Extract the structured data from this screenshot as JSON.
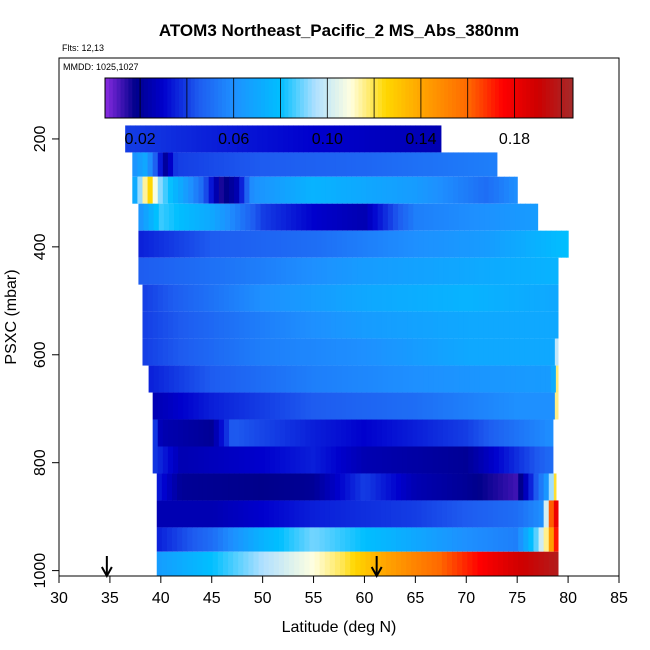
{
  "chart_data": {
    "type": "heatmap",
    "title": "ATOM3 Northeast_Pacific_2 MS_Abs_380nm",
    "flights_label": "Flts: 12,13",
    "dates_label": "MMDD: 1025,1027",
    "xlabel": "Latitude (deg N)",
    "ylabel": "PSXC (mbar)",
    "xlim": [
      30,
      85
    ],
    "ylim": [
      1010,
      50
    ],
    "y_reversed": true,
    "x_ticks": [
      "30",
      "35",
      "40",
      "45",
      "50",
      "55",
      "60",
      "65",
      "70",
      "75",
      "80",
      "85"
    ],
    "y_ticks": [
      "200",
      "400",
      "600",
      "800",
      "1000"
    ],
    "colorbar": {
      "range": [
        0.005,
        0.205
      ],
      "tick_values": [
        0.02,
        0.06,
        0.1,
        0.14,
        0.18
      ],
      "tick_labels": [
        "0.02",
        "0.06",
        "0.10",
        "0.14",
        "0.18"
      ],
      "stops": [
        {
          "v": 0.005,
          "color": "#8a2be2"
        },
        {
          "v": 0.018,
          "color": "#00008b"
        },
        {
          "v": 0.03,
          "color": "#0000cd"
        },
        {
          "v": 0.045,
          "color": "#1e5cf0"
        },
        {
          "v": 0.06,
          "color": "#1e90ff"
        },
        {
          "v": 0.08,
          "color": "#00bfff"
        },
        {
          "v": 0.095,
          "color": "#b0e0ff"
        },
        {
          "v": 0.11,
          "color": "#ffffe0"
        },
        {
          "v": 0.125,
          "color": "#ffd700"
        },
        {
          "v": 0.14,
          "color": "#ffa500"
        },
        {
          "v": 0.16,
          "color": "#ff6a00"
        },
        {
          "v": 0.175,
          "color": "#ff0000"
        },
        {
          "v": 0.19,
          "color": "#cd0000"
        },
        {
          "v": 0.205,
          "color": "#a52a2a"
        }
      ]
    },
    "bands": [
      {
        "p0": 175,
        "p1": 225,
        "lat0": 36.5,
        "lat1": 67.5,
        "profile": [
          [
            36.5,
            0.04
          ],
          [
            45,
            0.035
          ],
          [
            55,
            0.03
          ],
          [
            67.5,
            0.025
          ]
        ]
      },
      {
        "p0": 225,
        "p1": 270,
        "lat0": 37.2,
        "lat1": 73.0,
        "profile": [
          [
            37.2,
            0.06
          ],
          [
            38.5,
            0.07
          ],
          [
            40.5,
            0.02
          ],
          [
            41.5,
            0.04
          ],
          [
            50,
            0.045
          ],
          [
            60,
            0.048
          ],
          [
            73,
            0.055
          ]
        ]
      },
      {
        "p0": 270,
        "p1": 320,
        "lat0": 37.2,
        "lat1": 75.0,
        "profile": [
          [
            37.2,
            0.06
          ],
          [
            38.8,
            0.13
          ],
          [
            40,
            0.09
          ],
          [
            42,
            0.07
          ],
          [
            44,
            0.05
          ],
          [
            46,
            0.015
          ],
          [
            47.5,
            0.025
          ],
          [
            49,
            0.06
          ],
          [
            55,
            0.075
          ],
          [
            65,
            0.065
          ],
          [
            72,
            0.05
          ],
          [
            75,
            0.06
          ]
        ]
      },
      {
        "p0": 320,
        "p1": 370,
        "lat0": 37.8,
        "lat1": 77.0,
        "profile": [
          [
            37.8,
            0.06
          ],
          [
            40,
            0.085
          ],
          [
            45,
            0.07
          ],
          [
            50,
            0.04
          ],
          [
            55,
            0.03
          ],
          [
            60,
            0.025
          ],
          [
            65,
            0.055
          ],
          [
            77,
            0.065
          ]
        ]
      },
      {
        "p0": 370,
        "p1": 420,
        "lat0": 37.8,
        "lat1": 80.0,
        "profile": [
          [
            37.8,
            0.035
          ],
          [
            45,
            0.045
          ],
          [
            55,
            0.05
          ],
          [
            65,
            0.06
          ],
          [
            72,
            0.065
          ],
          [
            80,
            0.08
          ]
        ]
      },
      {
        "p0": 420,
        "p1": 470,
        "lat0": 37.8,
        "lat1": 79.0,
        "profile": [
          [
            37.8,
            0.045
          ],
          [
            50,
            0.055
          ],
          [
            60,
            0.065
          ],
          [
            70,
            0.07
          ],
          [
            79,
            0.075
          ]
        ]
      },
      {
        "p0": 470,
        "p1": 520,
        "lat0": 38.2,
        "lat1": 79.0,
        "profile": [
          [
            38.2,
            0.04
          ],
          [
            50,
            0.06
          ],
          [
            60,
            0.07
          ],
          [
            70,
            0.075
          ],
          [
            79,
            0.07
          ]
        ]
      },
      {
        "p0": 520,
        "p1": 570,
        "lat0": 38.2,
        "lat1": 79.0,
        "profile": [
          [
            38.2,
            0.04
          ],
          [
            50,
            0.055
          ],
          [
            60,
            0.065
          ],
          [
            70,
            0.07
          ],
          [
            79,
            0.07
          ]
        ]
      },
      {
        "p0": 570,
        "p1": 620,
        "lat0": 38.2,
        "lat1": 79.0,
        "profile": [
          [
            38.2,
            0.04
          ],
          [
            50,
            0.055
          ],
          [
            60,
            0.06
          ],
          [
            70,
            0.07
          ],
          [
            78.5,
            0.07
          ],
          [
            79,
            0.11
          ]
        ]
      },
      {
        "p0": 620,
        "p1": 670,
        "lat0": 38.8,
        "lat1": 79.0,
        "profile": [
          [
            38.8,
            0.035
          ],
          [
            45,
            0.045
          ],
          [
            55,
            0.055
          ],
          [
            65,
            0.06
          ],
          [
            78.5,
            0.065
          ],
          [
            79,
            0.13
          ]
        ]
      },
      {
        "p0": 670,
        "p1": 720,
        "lat0": 39.2,
        "lat1": 79.0,
        "profile": [
          [
            39.2,
            0.025
          ],
          [
            45,
            0.035
          ],
          [
            55,
            0.045
          ],
          [
            65,
            0.05
          ],
          [
            75,
            0.06
          ],
          [
            78.5,
            0.06
          ],
          [
            79,
            0.14
          ]
        ]
      },
      {
        "p0": 720,
        "p1": 770,
        "lat0": 39.2,
        "lat1": 78.5,
        "profile": [
          [
            39.2,
            0.045
          ],
          [
            40,
            0.025
          ],
          [
            45,
            0.02
          ],
          [
            47,
            0.045
          ],
          [
            55,
            0.035
          ],
          [
            60,
            0.03
          ],
          [
            70,
            0.04
          ],
          [
            78.5,
            0.06
          ]
        ]
      },
      {
        "p0": 770,
        "p1": 820,
        "lat0": 39.2,
        "lat1": 78.5,
        "profile": [
          [
            39.2,
            0.04
          ],
          [
            42,
            0.025
          ],
          [
            50,
            0.03
          ],
          [
            55,
            0.035
          ],
          [
            60,
            0.025
          ],
          [
            70,
            0.02
          ],
          [
            78.5,
            0.05
          ]
        ]
      },
      {
        "p0": 820,
        "p1": 870,
        "lat0": 39.6,
        "lat1": 78.8,
        "profile": [
          [
            39.6,
            0.035
          ],
          [
            42,
            0.02
          ],
          [
            50,
            0.018
          ],
          [
            55,
            0.02
          ],
          [
            60,
            0.04
          ],
          [
            65,
            0.025
          ],
          [
            70,
            0.02
          ],
          [
            75,
            0.012
          ],
          [
            78,
            0.065
          ],
          [
            78.8,
            0.13
          ]
        ]
      },
      {
        "p0": 870,
        "p1": 920,
        "lat0": 39.6,
        "lat1": 79.0,
        "profile": [
          [
            39.6,
            0.025
          ],
          [
            45,
            0.025
          ],
          [
            55,
            0.035
          ],
          [
            65,
            0.04
          ],
          [
            75,
            0.05
          ],
          [
            77.5,
            0.06
          ],
          [
            78.5,
            0.18
          ]
        ]
      },
      {
        "p0": 920,
        "p1": 965,
        "lat0": 39.6,
        "lat1": 79.0,
        "profile": [
          [
            39.6,
            0.035
          ],
          [
            45,
            0.05
          ],
          [
            50,
            0.075
          ],
          [
            55,
            0.09
          ],
          [
            60,
            0.08
          ],
          [
            65,
            0.07
          ],
          [
            70,
            0.06
          ],
          [
            75,
            0.055
          ],
          [
            77,
            0.09
          ],
          [
            78,
            0.12
          ],
          [
            79,
            0.185
          ]
        ]
      },
      {
        "p0": 965,
        "p1": 1010,
        "lat0": 39.6,
        "lat1": 79.0,
        "profile": [
          [
            39.6,
            0.065
          ],
          [
            45,
            0.08
          ],
          [
            50,
            0.095
          ],
          [
            55,
            0.11
          ],
          [
            58,
            0.12
          ],
          [
            62,
            0.14
          ],
          [
            66,
            0.155
          ],
          [
            70,
            0.17
          ],
          [
            74,
            0.185
          ],
          [
            79,
            0.2
          ]
        ]
      }
    ],
    "markers": [
      {
        "lat": 34.7,
        "label": "down-arrow"
      },
      {
        "lat": 61.2,
        "label": "down-arrow"
      }
    ]
  }
}
